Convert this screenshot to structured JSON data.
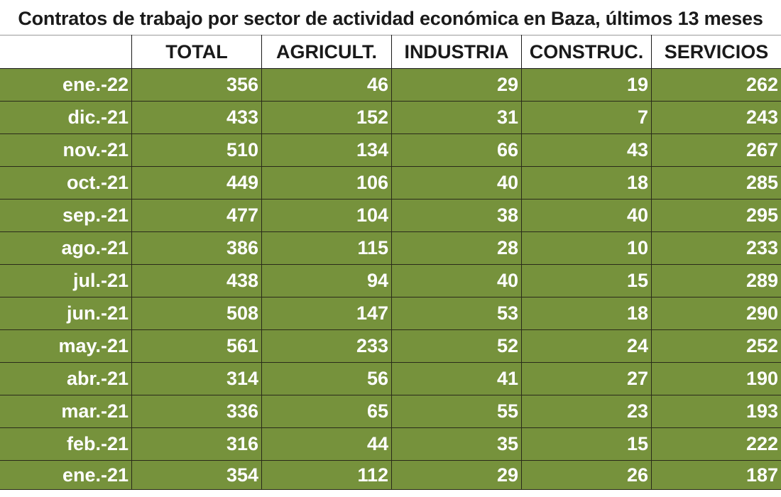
{
  "title": "Contratos de trabajo por sector de actividad económica en Baza, últimos 13 meses",
  "chart_data": {
    "type": "table",
    "title": "Contratos de trabajo por sector de actividad económica en Baza, últimos 13 meses",
    "columns": [
      "",
      "TOTAL",
      "AGRICULT.",
      "INDUSTRIA",
      "CONSTRUC.",
      "SERVICIOS"
    ],
    "rows": [
      {
        "month": "ene.-22",
        "values": [
          "356",
          "46",
          "29",
          "19",
          "262"
        ]
      },
      {
        "month": "dic.-21",
        "values": [
          "433",
          "152",
          "31",
          "7",
          "243"
        ]
      },
      {
        "month": "nov.-21",
        "values": [
          "510",
          "134",
          "66",
          "43",
          "267"
        ]
      },
      {
        "month": "oct.-21",
        "values": [
          "449",
          "106",
          "40",
          "18",
          "285"
        ]
      },
      {
        "month": "sep.-21",
        "values": [
          "477",
          "104",
          "38",
          "40",
          "295"
        ]
      },
      {
        "month": "ago.-21",
        "values": [
          "386",
          "115",
          "28",
          "10",
          "233"
        ]
      },
      {
        "month": "jul.-21",
        "values": [
          "438",
          "94",
          "40",
          "15",
          "289"
        ]
      },
      {
        "month": "jun.-21",
        "values": [
          "508",
          "147",
          "53",
          "18",
          "290"
        ]
      },
      {
        "month": "may.-21",
        "values": [
          "561",
          "233",
          "52",
          "24",
          "252"
        ]
      },
      {
        "month": "abr.-21",
        "values": [
          "314",
          "56",
          "41",
          "27",
          "190"
        ]
      },
      {
        "month": "mar.-21",
        "values": [
          "336",
          "65",
          "55",
          "23",
          "193"
        ]
      },
      {
        "month": "feb.-21",
        "values": [
          "316",
          "44",
          "35",
          "15",
          "222"
        ]
      },
      {
        "month": "ene.-21",
        "values": [
          "354",
          "112",
          "29",
          "26",
          "187"
        ]
      }
    ]
  },
  "colors": {
    "row_fill": "#76923c",
    "header_text": "#1a1a1a",
    "cell_text": "#ffffff"
  }
}
